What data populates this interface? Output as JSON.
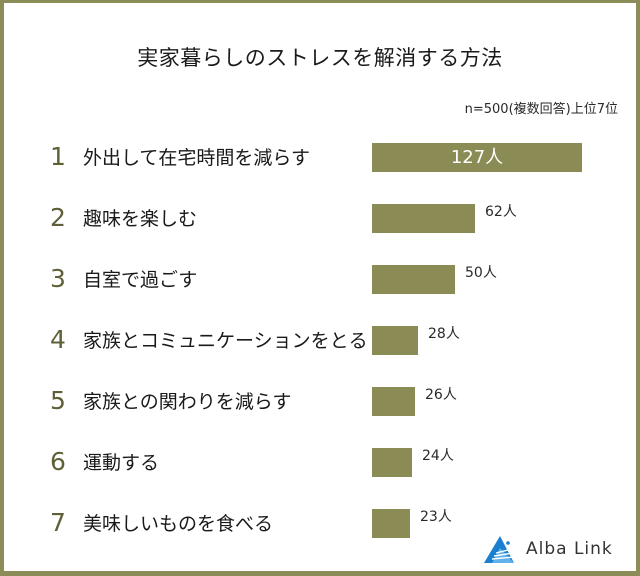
{
  "header": {
    "title": "実家暮らしのストレスを解消する方法",
    "subtitle": "n=500(複数回答)上位7位"
  },
  "colors": {
    "frame": "#8b8c57",
    "bar": "#8a8b55",
    "rank": "#5f6037",
    "logo_blue": "#1a7fd0"
  },
  "rows": [
    {
      "rank": "1",
      "label": "外出して在宅時間を減らす",
      "value": "127人"
    },
    {
      "rank": "2",
      "label": "趣味を楽しむ",
      "value": "62人"
    },
    {
      "rank": "3",
      "label": "自室で過ごす",
      "value": "50人"
    },
    {
      "rank": "4",
      "label": "家族とコミュニケーションをとる",
      "value": "28人"
    },
    {
      "rank": "5",
      "label": "家族との関わりを減らす",
      "value": "26人"
    },
    {
      "rank": "6",
      "label": "運動する",
      "value": "24人"
    },
    {
      "rank": "7",
      "label": "美味しいものを食べる",
      "value": "23人"
    }
  ],
  "logo": {
    "icon": "alba-link-sail-icon",
    "text": "Alba Link"
  },
  "chart_data": {
    "type": "bar",
    "orientation": "horizontal",
    "title": "実家暮らしのストレスを解消する方法",
    "subtitle": "n=500(複数回答)上位7位",
    "categories": [
      "外出して在宅時間を減らす",
      "趣味を楽しむ",
      "自室で過ごす",
      "家族とコミュニケーションをとる",
      "家族との関わりを減らす",
      "運動する",
      "美味しいものを食べる"
    ],
    "values": [
      127,
      62,
      50,
      28,
      26,
      24,
      23
    ],
    "value_unit": "人",
    "xlabel": "",
    "ylabel": "",
    "grid": false,
    "legend": null
  }
}
